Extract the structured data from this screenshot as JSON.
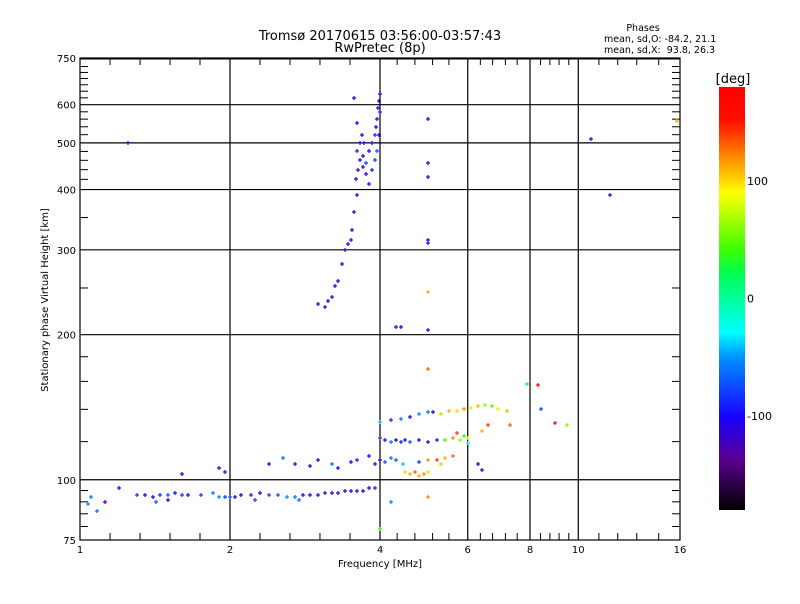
{
  "chart_data": {
    "type": "scatter",
    "title": "Tromsø 20170615 03:56:00-03:57:43",
    "subtitle": "RwPretec (8p)",
    "xlabel": "Frequency [MHz]",
    "ylabel": "Stationary phase Virtual Height [km]",
    "xscale": "log",
    "yscale": "log",
    "xlim": [
      1,
      16
    ],
    "ylim": [
      75,
      750
    ],
    "xticks": [
      {
        "v": 1,
        "label": "1"
      },
      {
        "v": 2,
        "label": "2"
      },
      {
        "v": 4,
        "label": "4"
      },
      {
        "v": 6,
        "label": "6"
      },
      {
        "v": 8,
        "label": "8"
      },
      {
        "v": 10,
        "label": "10"
      },
      {
        "v": 16,
        "label": "16"
      }
    ],
    "yticks": [
      {
        "v": 75,
        "label": "75"
      },
      {
        "v": 100,
        "label": "100"
      },
      {
        "v": 200,
        "label": "200"
      },
      {
        "v": 300,
        "label": "300"
      },
      {
        "v": 400,
        "label": "400"
      },
      {
        "v": 500,
        "label": "500"
      },
      {
        "v": 600,
        "label": "600"
      },
      {
        "v": 750,
        "label": "750"
      }
    ],
    "grid": true,
    "colorbar": {
      "label": "[deg]",
      "range": [
        -180,
        180
      ],
      "ticks": [
        {
          "v": 100,
          "label": "100"
        },
        {
          "v": 0,
          "label": "0"
        },
        {
          "v": -100,
          "label": "-100"
        }
      ]
    },
    "stats": {
      "heading": "Phases",
      "o_line": "mean, sd,O: -84.2, 21.1",
      "x_line": "mean, sd,X:  93.8, 26.3"
    },
    "point_fields": [
      "frequency_mhz",
      "height_km",
      "phase_deg"
    ],
    "points": [
      [
        3.0,
        232,
        -110
      ],
      [
        3.1,
        228,
        -120
      ],
      [
        3.15,
        235,
        -110
      ],
      [
        3.2,
        240,
        -130
      ],
      [
        3.25,
        252,
        -110
      ],
      [
        3.3,
        258,
        -100
      ],
      [
        3.35,
        280,
        -110
      ],
      [
        3.4,
        300,
        -110
      ],
      [
        3.45,
        308,
        -120
      ],
      [
        3.5,
        315,
        -110
      ],
      [
        3.52,
        330,
        -110
      ],
      [
        3.55,
        360,
        -110
      ],
      [
        3.6,
        390,
        -110
      ],
      [
        3.58,
        420,
        -100
      ],
      [
        3.62,
        440,
        -110
      ],
      [
        3.65,
        460,
        -100
      ],
      [
        3.6,
        480,
        -90
      ],
      [
        3.7,
        445,
        -110
      ],
      [
        3.7,
        470,
        -100
      ],
      [
        3.75,
        455,
        -80
      ],
      [
        3.72,
        500,
        -100
      ],
      [
        3.68,
        520,
        -110
      ],
      [
        3.8,
        480,
        -100
      ],
      [
        3.85,
        500,
        -110
      ],
      [
        3.9,
        520,
        -90
      ],
      [
        3.92,
        540,
        -100
      ],
      [
        3.95,
        560,
        -110
      ],
      [
        3.97,
        590,
        -100
      ],
      [
        3.98,
        610,
        -110
      ],
      [
        4.0,
        630,
        -100
      ],
      [
        3.9,
        460,
        -80
      ],
      [
        3.55,
        620,
        -110
      ],
      [
        3.6,
        550,
        -100
      ],
      [
        3.65,
        500,
        -110
      ],
      [
        3.85,
        440,
        -90
      ],
      [
        3.95,
        480,
        -70
      ],
      [
        4.0,
        580,
        -90
      ],
      [
        3.98,
        520,
        -100
      ],
      [
        3.75,
        430,
        -110
      ],
      [
        3.8,
        410,
        -100
      ],
      [
        1.25,
        500,
        -110
      ],
      [
        10.6,
        510,
        -110
      ],
      [
        11.6,
        390,
        -110
      ],
      [
        15.8,
        555,
        110
      ],
      [
        5.0,
        560,
        -100
      ],
      [
        5.0,
        455,
        -100
      ],
      [
        5.0,
        425,
        -110
      ],
      [
        5.0,
        315,
        -100
      ],
      [
        5.0,
        310,
        -100
      ],
      [
        5.0,
        245,
        110
      ],
      [
        5.0,
        205,
        -100
      ],
      [
        4.3,
        207,
        -110
      ],
      [
        4.4,
        207,
        -100
      ],
      [
        5.0,
        170,
        130
      ],
      [
        1.05,
        92,
        -60
      ],
      [
        1.04,
        89,
        -50
      ],
      [
        1.3,
        93,
        -80
      ],
      [
        1.35,
        93,
        -110
      ],
      [
        1.4,
        92,
        -100
      ],
      [
        1.45,
        93,
        -90
      ],
      [
        1.5,
        93,
        -70
      ],
      [
        1.55,
        94,
        -110
      ],
      [
        1.6,
        93,
        -80
      ],
      [
        1.65,
        93,
        -100
      ],
      [
        1.75,
        93,
        -80
      ],
      [
        1.85,
        94,
        -60
      ],
      [
        1.9,
        92,
        -50
      ],
      [
        1.95,
        92,
        -80
      ],
      [
        2.0,
        92,
        -70
      ],
      [
        2.05,
        92,
        -100
      ],
      [
        2.1,
        93,
        -110
      ],
      [
        2.2,
        93,
        -90
      ],
      [
        2.3,
        94,
        -100
      ],
      [
        2.4,
        93,
        -80
      ],
      [
        2.5,
        93,
        -70
      ],
      [
        2.6,
        92,
        -50
      ],
      [
        2.7,
        92,
        -60
      ],
      [
        2.8,
        93,
        -110
      ],
      [
        2.9,
        93,
        -100
      ],
      [
        3.0,
        93,
        -120
      ],
      [
        3.1,
        94,
        -110
      ],
      [
        3.2,
        94,
        -110
      ],
      [
        3.3,
        94,
        -120
      ],
      [
        3.4,
        95,
        -110
      ],
      [
        3.5,
        95,
        -100
      ],
      [
        3.6,
        95,
        -120
      ],
      [
        3.7,
        95,
        -110
      ],
      [
        3.8,
        96,
        -100
      ],
      [
        3.9,
        96,
        -90
      ],
      [
        1.95,
        104,
        -110
      ],
      [
        1.9,
        106,
        -110
      ],
      [
        1.2,
        96,
        -110
      ],
      [
        1.6,
        103,
        -110
      ],
      [
        2.55,
        111,
        -60
      ],
      [
        2.4,
        108,
        -100
      ],
      [
        4.0,
        79,
        40
      ],
      [
        4.2,
        90,
        -50
      ],
      [
        5.0,
        92,
        120
      ],
      [
        1.42,
        90,
        -70
      ],
      [
        1.5,
        91,
        -110
      ],
      [
        2.25,
        91,
        -80
      ],
      [
        2.75,
        91,
        -60
      ],
      [
        1.12,
        90,
        -120
      ],
      [
        1.08,
        86,
        -60
      ],
      [
        2.7,
        108,
        -110
      ],
      [
        2.9,
        107,
        -100
      ],
      [
        3.0,
        110,
        -110
      ],
      [
        3.2,
        108,
        -60
      ],
      [
        3.3,
        106,
        -100
      ],
      [
        3.5,
        109,
        -110
      ],
      [
        3.6,
        110,
        -90
      ],
      [
        3.8,
        112,
        -100
      ],
      [
        3.9,
        108,
        -120
      ],
      [
        4.0,
        110,
        -110
      ],
      [
        4.1,
        109,
        -70
      ],
      [
        4.2,
        111,
        -60
      ],
      [
        4.3,
        110,
        -70
      ],
      [
        4.45,
        108,
        -40
      ],
      [
        4.5,
        104,
        100
      ],
      [
        4.6,
        103,
        110
      ],
      [
        4.7,
        104,
        130
      ],
      [
        4.8,
        102,
        110
      ],
      [
        4.9,
        103,
        120
      ],
      [
        5.0,
        104,
        100
      ],
      [
        5.0,
        110,
        120
      ],
      [
        5.2,
        110,
        140
      ],
      [
        5.4,
        111,
        110
      ],
      [
        5.6,
        112,
        130
      ],
      [
        5.3,
        108,
        60
      ],
      [
        4.8,
        109,
        -80
      ],
      [
        6.3,
        108,
        -100
      ],
      [
        6.4,
        105,
        -120
      ],
      [
        4.0,
        122,
        -80
      ],
      [
        4.1,
        121,
        -100
      ],
      [
        4.2,
        120,
        -60
      ],
      [
        4.3,
        121,
        -110
      ],
      [
        4.4,
        120,
        -90
      ],
      [
        4.5,
        121,
        -100
      ],
      [
        4.6,
        120,
        -70
      ],
      [
        4.8,
        121,
        -100
      ],
      [
        5.0,
        120,
        -120
      ],
      [
        5.2,
        121,
        -90
      ],
      [
        5.4,
        121,
        40
      ],
      [
        5.6,
        122,
        120
      ],
      [
        5.8,
        121,
        60
      ],
      [
        5.9,
        123,
        40
      ],
      [
        6.0,
        122,
        80
      ],
      [
        5.7,
        125,
        140
      ],
      [
        6.0,
        119,
        -30
      ],
      [
        4.0,
        132,
        -40
      ],
      [
        4.2,
        133,
        -90
      ],
      [
        4.4,
        134,
        -60
      ],
      [
        4.6,
        135,
        -100
      ],
      [
        4.8,
        137,
        -50
      ],
      [
        5.0,
        138,
        -60
      ],
      [
        5.1,
        138,
        -110
      ],
      [
        5.3,
        137,
        60
      ],
      [
        5.5,
        139,
        110
      ],
      [
        5.7,
        139,
        100
      ],
      [
        5.9,
        140,
        120
      ],
      [
        6.1,
        141,
        80
      ],
      [
        6.3,
        142,
        110
      ],
      [
        6.5,
        143,
        60
      ],
      [
        6.7,
        142,
        50
      ],
      [
        6.9,
        140,
        80
      ],
      [
        7.2,
        139,
        110
      ],
      [
        6.6,
        130,
        140
      ],
      [
        6.4,
        126,
        110
      ],
      [
        7.3,
        130,
        130
      ],
      [
        7.9,
        158,
        0
      ],
      [
        8.3,
        157,
        170
      ],
      [
        8.4,
        140,
        -80
      ],
      [
        9.0,
        131,
        160
      ],
      [
        9.5,
        130,
        60
      ]
    ]
  }
}
